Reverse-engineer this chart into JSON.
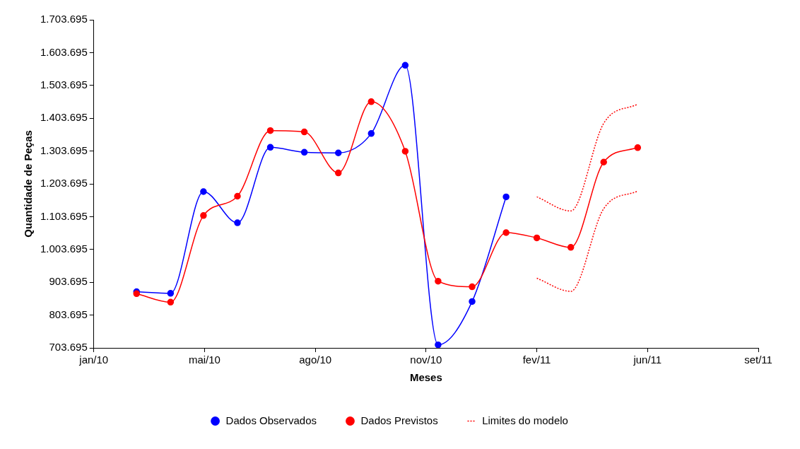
{
  "chart_data": {
    "type": "line",
    "xlabel": "Meses",
    "ylabel": "Quantidade de Peças",
    "xlim": [
      "2010-01-20",
      "2011-09-18"
    ],
    "xticks": [
      {
        "value": "2010-01-20",
        "label": "jan/10"
      },
      {
        "value": "2010-05-01",
        "label": "mai/10"
      },
      {
        "value": "2010-08-10",
        "label": "ago/10"
      },
      {
        "value": "2010-11-19",
        "label": "nov/10"
      },
      {
        "value": "2011-02-28",
        "label": "fev/11"
      },
      {
        "value": "2011-06-09",
        "label": "jun/11"
      },
      {
        "value": "2011-09-18",
        "label": "set/11"
      }
    ],
    "ylim": [
      703695,
      1703695
    ],
    "yticks": [
      {
        "value": 703695,
        "label": "703.695"
      },
      {
        "value": 803695,
        "label": "803.695"
      },
      {
        "value": 903695,
        "label": "903.695"
      },
      {
        "value": 1003695,
        "label": "1.003.695"
      },
      {
        "value": 1103695,
        "label": "1.103.695"
      },
      {
        "value": 1203695,
        "label": "1.203.695"
      },
      {
        "value": 1303695,
        "label": "1.303.695"
      },
      {
        "value": 1403695,
        "label": "1.403.695"
      },
      {
        "value": 1503695,
        "label": "1.503.695"
      },
      {
        "value": 1603695,
        "label": "1.603.695"
      },
      {
        "value": 1703695,
        "label": "1.703.695"
      }
    ],
    "grid": false,
    "legend": "bottom",
    "series": [
      {
        "name": "Dados Observados",
        "color": "#0000ff",
        "marker": "circle",
        "line_style": "solid",
        "x": [
          "2010-02-28",
          "2010-03-31",
          "2010-04-30",
          "2010-05-31",
          "2010-06-30",
          "2010-07-31",
          "2010-08-31",
          "2010-09-30",
          "2010-10-31",
          "2010-11-30",
          "2010-12-31",
          "2011-01-31"
        ],
        "values": [
          875000,
          870000,
          1180000,
          1085000,
          1315000,
          1300000,
          1298000,
          1357000,
          1565000,
          713000,
          845000,
          1164000
        ]
      },
      {
        "name": "Dados Previstos",
        "color": "#ff0000",
        "marker": "circle",
        "line_style": "solid",
        "x": [
          "2010-02-28",
          "2010-03-31",
          "2010-04-30",
          "2010-05-31",
          "2010-06-30",
          "2010-07-31",
          "2010-08-31",
          "2010-09-30",
          "2010-10-31",
          "2010-11-30",
          "2010-12-31",
          "2011-01-31",
          "2011-02-28",
          "2011-03-31",
          "2011-04-30",
          "2011-05-31"
        ],
        "values": [
          869000,
          843000,
          1107000,
          1166000,
          1366000,
          1362000,
          1237000,
          1454000,
          1303000,
          907000,
          890000,
          1055000,
          1039000,
          1010000,
          1270000,
          1314000
        ]
      },
      {
        "name": "Limites do modelo",
        "color": "#ff0000",
        "marker": "none",
        "line_style": "dotted",
        "x": [
          "2011-02-28",
          "2011-03-31",
          "2011-04-30",
          "2011-05-31"
        ],
        "values": [
          1164000,
          1121000,
          1388000,
          1447000
        ]
      },
      {
        "color": "#ff0000",
        "marker": "none",
        "line_style": "dotted",
        "x": [
          "2011-02-28",
          "2011-03-31",
          "2011-04-30",
          "2011-05-31"
        ],
        "values": [
          916000,
          876000,
          1128000,
          1182000
        ]
      }
    ]
  }
}
